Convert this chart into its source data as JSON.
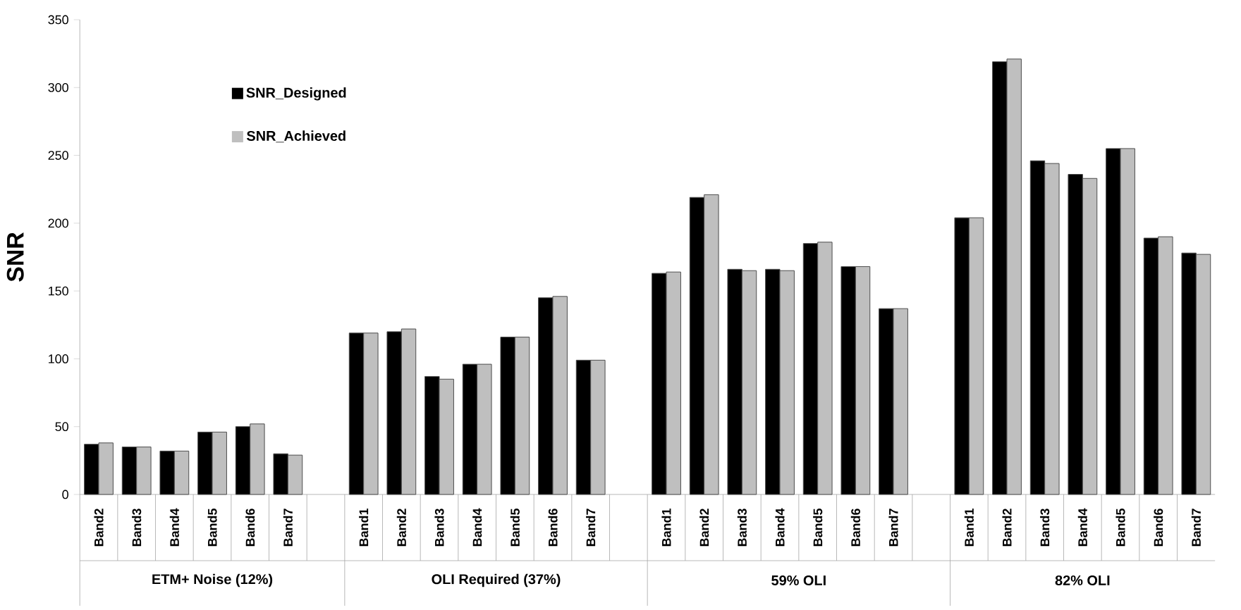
{
  "chart_data": {
    "type": "bar",
    "ylabel": "SNR",
    "categories": [
      "Band2",
      "Band3",
      "Band4",
      "Band5",
      "Band6",
      "Band7",
      null,
      "Band1",
      "Band2",
      "Band3",
      "Band4",
      "Band5",
      "Band6",
      "Band7",
      null,
      "Band1",
      "Band2",
      "Band3",
      "Band4",
      "Band5",
      "Band6",
      "Band7",
      null,
      "Band1",
      "Band2",
      "Band3",
      "Band4",
      "Band5",
      "Band6",
      "Band7"
    ],
    "series": [
      {
        "name": "SNR_Designed",
        "color": "#000000",
        "values": [
          37,
          35,
          32,
          46,
          50,
          30,
          null,
          119,
          120,
          87,
          96,
          116,
          145,
          99,
          null,
          163,
          219,
          166,
          166,
          185,
          168,
          137,
          null,
          204,
          319,
          246,
          236,
          255,
          189,
          178
        ]
      },
      {
        "name": "SNR_Achieved",
        "color": "#bfbfbf",
        "values": [
          38,
          35,
          32,
          46,
          52,
          29,
          null,
          119,
          122,
          85,
          96,
          116,
          146,
          99,
          null,
          164,
          221,
          165,
          165,
          186,
          168,
          137,
          null,
          204,
          321,
          244,
          233,
          255,
          190,
          177
        ]
      }
    ],
    "annotations": [
      "ETM+ Noise (12%)",
      "OLI Required (37%)",
      "59% OLI",
      "82% OLI"
    ],
    "ylim": [
      0,
      350
    ],
    "yticks": [
      0,
      50,
      100,
      150,
      200,
      250,
      300,
      350
    ],
    "grid": false,
    "legend": "top left"
  }
}
